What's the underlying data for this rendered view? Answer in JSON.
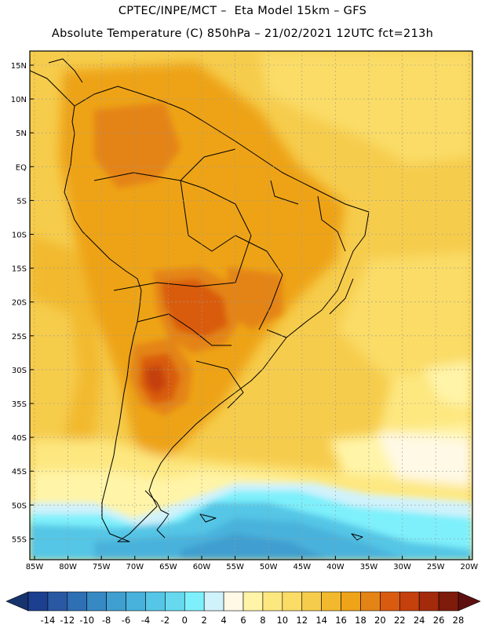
{
  "header": {
    "line1": "CPTEC/INPE/MCT –  Eta Model 15km – GFS",
    "line2": "Absolute Temperature (C) 850hPa – 21/02/2021 12UTC fct=213h"
  },
  "map": {
    "lat_labels": [
      "15N",
      "10N",
      "5N",
      "EQ",
      "5S",
      "10S",
      "15S",
      "20S",
      "25S",
      "30S",
      "35S",
      "40S",
      "45S",
      "50S",
      "55S"
    ],
    "lon_labels": [
      "85W",
      "80W",
      "75W",
      "70W",
      "65W",
      "60W",
      "55W",
      "50W",
      "45W",
      "40W",
      "35W",
      "30W",
      "25W",
      "20W"
    ]
  },
  "colorbar": {
    "labels": [
      "-14",
      "-12",
      "-10",
      "-8",
      "-6",
      "-4",
      "-2",
      "0",
      "2",
      "4",
      "6",
      "8",
      "10",
      "12",
      "14",
      "16",
      "18",
      "20",
      "22",
      "24",
      "26",
      "28"
    ],
    "colors": [
      "#1c3f8f",
      "#2a58a3",
      "#2f6fb3",
      "#3789c4",
      "#3f9fd0",
      "#48b2dc",
      "#55c6e6",
      "#66d9ef",
      "#7ef0fb",
      "#d0f2fb",
      "#fff9e6",
      "#fff4a8",
      "#fde77f",
      "#fadc66",
      "#f6cc4c",
      "#f2b92e",
      "#eea319",
      "#e48416",
      "#d95b10",
      "#c4400c",
      "#a32a0a",
      "#7e1b0a"
    ]
  }
}
